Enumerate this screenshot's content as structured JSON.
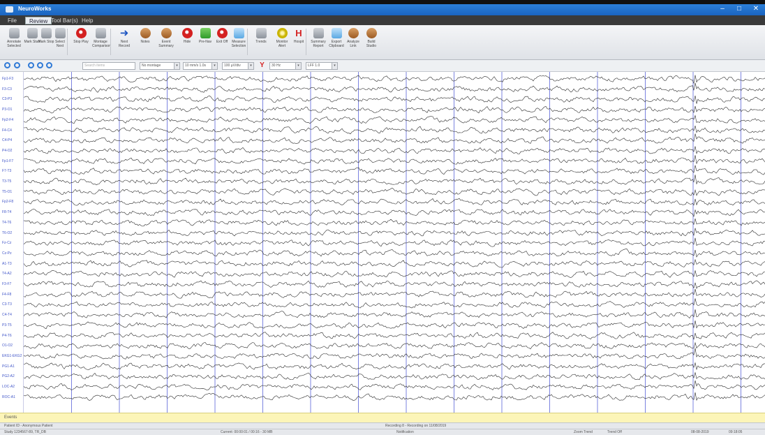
{
  "window": {
    "title": "NeuroWorks",
    "controls": [
      "–",
      "□",
      "✕"
    ]
  },
  "menu": {
    "items": [
      {
        "label": "File",
        "active": false
      },
      {
        "label": "Review",
        "active": true
      },
      {
        "label": "Tool Bar(s)",
        "active": false
      },
      {
        "label": "Help",
        "active": false
      }
    ]
  },
  "ribbon": {
    "buttons": [
      {
        "label": "Annotate Selected",
        "icon": "annotate-icon",
        "style": "gray"
      },
      {
        "label": "Mark Start",
        "icon": "mark-start-icon",
        "style": "gray"
      },
      {
        "label": "Mark Stop",
        "icon": "mark-stop-icon",
        "style": "gray"
      },
      {
        "label": "Select Next",
        "icon": "select-next-icon",
        "style": "gray"
      },
      {
        "label": "Stop Play",
        "icon": "stop-icon",
        "style": "red"
      },
      {
        "label": "Montage Comparison",
        "icon": "montage-icon",
        "style": "gray"
      },
      {
        "label": "Next Record",
        "icon": "arrow-right-icon",
        "style": "arrow"
      },
      {
        "label": "Notes",
        "icon": "notes-icon",
        "style": "brown"
      },
      {
        "label": "Event Summary",
        "icon": "event-icon",
        "style": "brown"
      },
      {
        "label": "Hide",
        "icon": "hide-icon",
        "style": "red"
      },
      {
        "label": "Pre-Nav",
        "icon": "prenav-icon",
        "style": "green"
      },
      {
        "label": "Exit Off",
        "icon": "exit-icon",
        "style": "red"
      },
      {
        "label": "Measure Selection",
        "icon": "measure-icon",
        "style": "cyan"
      },
      {
        "label": "Trends",
        "icon": "trend-icon",
        "style": "gray"
      },
      {
        "label": "Monitor Alert",
        "icon": "alert-icon",
        "style": "yellow"
      },
      {
        "label": "Hospit",
        "icon": "h-icon",
        "style": "hbtn"
      },
      {
        "label": "Summary Report",
        "icon": "report-icon",
        "style": "gray"
      },
      {
        "label": "Export Clipboard",
        "icon": "export-icon",
        "style": "cyan"
      },
      {
        "label": "Analyze Link",
        "icon": "analyze-icon",
        "style": "brown"
      },
      {
        "label": "Build Studio",
        "icon": "build-icon",
        "style": "brown"
      }
    ]
  },
  "toolbar": {
    "search_placeholder": "Search items",
    "combos": [
      "No montage",
      "10 mm/s 1.0s",
      "100 µV/div",
      "30 Hz",
      "LFF 1.0"
    ]
  },
  "eeg": {
    "channels": [
      "Fp1-F3",
      "F3-C3",
      "C3-P3",
      "P3-O1",
      "Fp2-F4",
      "F4-C4",
      "C4-P4",
      "P4-O2",
      "Fp1-F7",
      "F7-T3",
      "T3-T5",
      "T5-O1",
      "Fp2-F8",
      "F8-T4",
      "T4-T6",
      "T6-O2",
      "Fz-Cz",
      "Cz-Pz",
      "A1-T3",
      "T4-A2",
      "F3-F7",
      "F4-F8",
      "C3-T3",
      "C4-T4",
      "P3-T5",
      "P4-T6",
      "O1-O2",
      "EKG1-EKG2",
      "PG1-A1",
      "PG2-A2",
      "LOC-A2",
      "ROC-A1"
    ],
    "colors": {
      "trace": "#2b2b2b",
      "gridline": "#5a64d8",
      "label": "#3f54c8"
    }
  },
  "annotation_bar": {
    "label": "Events"
  },
  "status": {
    "patient": "Patient ID - Anonymous Patient",
    "recording": "Recording 8 - Recording on 11/08/2019",
    "file": "Study 1234567-89, TR_DB",
    "time": "Current: 00:00:01 / 00:16 - 30 MB",
    "notes": "Notification",
    "view": "Zoom Trend",
    "display": "Trend Off",
    "date": "08-08-2019",
    "clock": "09:18:05"
  }
}
